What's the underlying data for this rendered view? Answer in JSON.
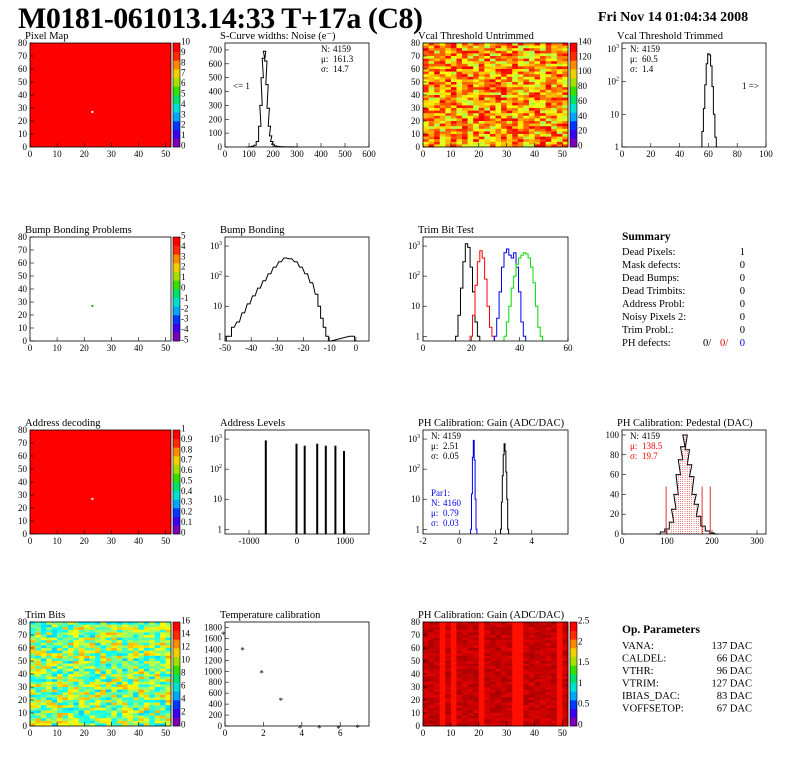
{
  "header": {
    "title": "M0181-061013.14:33 T+17a (C8)",
    "date": "Fri Nov 14 01:04:34 2008"
  },
  "colors": {
    "red": "#ff0000",
    "green": "#00dd00",
    "blue": "#0000ee",
    "black": "#000000",
    "frame": "#000000"
  },
  "chart_data": [
    {
      "id": "pixel-map",
      "type": "heatmap",
      "title": "Pixel Map",
      "xlim": [
        0,
        52
      ],
      "ylim": [
        0,
        80
      ],
      "xticks": [
        0,
        10,
        20,
        30,
        40,
        50
      ],
      "yticks": [
        0,
        10,
        20,
        30,
        40,
        50,
        60,
        70,
        80
      ],
      "fill": "uniform-red",
      "special_points": [
        {
          "x": 23,
          "y": 27,
          "color": "white"
        }
      ],
      "colorbar": {
        "min": 0,
        "max": 10,
        "ticks": [
          0,
          1,
          2,
          3,
          4,
          5,
          6,
          7,
          8,
          9,
          10
        ]
      }
    },
    {
      "id": "noise",
      "type": "line",
      "title": "S-Curve widths: Noise (e⁻)",
      "xlim": [
        0,
        600
      ],
      "ylim": [
        0,
        750
      ],
      "xticks": [
        0,
        100,
        200,
        300,
        400,
        500,
        600
      ],
      "yticks": [
        0,
        100,
        200,
        300,
        400,
        500,
        600,
        700
      ],
      "stats": [
        {
          "label": "N:",
          "value": "4159"
        },
        {
          "label": "μ:",
          "value": "161.3"
        },
        {
          "label": "σ:",
          "value": "14.7"
        }
      ],
      "annotation": "<= 1",
      "series": [
        {
          "x": [
            95,
            105,
            115,
            125,
            135,
            145,
            150,
            155,
            160,
            165,
            170,
            175,
            180,
            185,
            190,
            195,
            200,
            210,
            220,
            240,
            260,
            280,
            300
          ],
          "y": [
            0,
            2,
            5,
            12,
            40,
            150,
            300,
            500,
            640,
            690,
            620,
            450,
            280,
            150,
            80,
            40,
            20,
            8,
            4,
            2,
            1,
            1,
            0
          ]
        }
      ]
    },
    {
      "id": "vcal-untrimmed",
      "type": "heatmap",
      "title": "Vcal Threshold Untrimmed",
      "xlim": [
        0,
        52
      ],
      "ylim": [
        0,
        80
      ],
      "xticks": [
        0,
        10,
        20,
        30,
        40,
        50
      ],
      "yticks": [
        0,
        10,
        20,
        30,
        40,
        50,
        60,
        70,
        80
      ],
      "fill": "noisy-orange",
      "colorbar": {
        "min": 0,
        "max": 140,
        "ticks": [
          0,
          20,
          40,
          60,
          80,
          100,
          120,
          140
        ]
      }
    },
    {
      "id": "vcal-trimmed",
      "type": "line",
      "title": "Vcal Threshold Trimmed",
      "xlim": [
        0,
        100
      ],
      "ylim": [
        1,
        1500
      ],
      "log_y": true,
      "xticks": [
        0,
        20,
        40,
        60,
        80,
        100
      ],
      "yticks": [
        1,
        10,
        100,
        1000
      ],
      "stats": [
        {
          "label": "N:",
          "value": "4159"
        },
        {
          "label": "μ:",
          "value": "60.5"
        },
        {
          "label": "σ:",
          "value": "1.4"
        }
      ],
      "annotation": "1 =>",
      "series": [
        {
          "x": [
            55,
            56,
            57,
            58,
            59,
            60,
            61,
            62,
            63,
            64,
            65,
            66
          ],
          "y": [
            1,
            3,
            15,
            80,
            350,
            700,
            650,
            300,
            70,
            10,
            2,
            1
          ]
        }
      ]
    },
    {
      "id": "bump-problems",
      "type": "heatmap",
      "title": "Bump Bonding Problems",
      "xlim": [
        0,
        52
      ],
      "ylim": [
        0,
        80
      ],
      "xticks": [
        0,
        10,
        20,
        30,
        40,
        50
      ],
      "yticks": [
        0,
        10,
        20,
        30,
        40,
        50,
        60,
        70,
        80
      ],
      "fill": "white",
      "special_points": [
        {
          "x": 23,
          "y": 27,
          "color": "green"
        }
      ],
      "colorbar": {
        "min": -5,
        "max": 5,
        "ticks": [
          -5,
          -4,
          -3,
          -2,
          -1,
          0,
          1,
          2,
          3,
          4,
          5
        ]
      }
    },
    {
      "id": "bump-bonding",
      "type": "line",
      "title": "Bump Bonding",
      "xlim": [
        -50,
        5
      ],
      "ylim": [
        0.7,
        2000
      ],
      "log_y": true,
      "xticks": [
        -50,
        -40,
        -30,
        -20,
        -10,
        0
      ],
      "yticks": [
        1,
        10,
        100,
        1000
      ],
      "series": [
        {
          "x": [
            -49,
            -48,
            -47,
            -45,
            -43,
            -41,
            -39,
            -37,
            -35,
            -33,
            -31,
            -29,
            -27,
            -25,
            -23,
            -21,
            -19,
            -17,
            -15,
            -14,
            -13,
            -12,
            -11,
            -10,
            -2,
            -1,
            0
          ],
          "y": [
            1,
            1,
            2,
            3,
            6,
            12,
            22,
            40,
            70,
            120,
            200,
            300,
            400,
            380,
            300,
            200,
            120,
            60,
            25,
            10,
            4,
            2,
            1,
            0,
            1,
            1,
            0
          ]
        }
      ]
    },
    {
      "id": "trim-bit",
      "type": "line",
      "title": "Trim Bit Test",
      "xlim": [
        0,
        60
      ],
      "ylim": [
        0.7,
        2000
      ],
      "log_y": true,
      "xticks": [
        0,
        20,
        40,
        60
      ],
      "yticks": [
        1,
        10,
        100,
        1000
      ],
      "series": [
        {
          "name": "",
          "color": "#000000",
          "x": [
            14,
            15,
            16,
            17,
            18,
            19,
            20,
            21,
            22,
            23
          ],
          "y": [
            1,
            5,
            40,
            300,
            1200,
            900,
            200,
            30,
            3,
            1
          ]
        },
        {
          "name": "",
          "color": "#ff0000",
          "x": [
            20,
            21,
            22,
            23,
            24,
            25,
            26,
            27,
            28,
            29
          ],
          "y": [
            1,
            5,
            50,
            300,
            700,
            400,
            80,
            10,
            2,
            1
          ]
        },
        {
          "name": "",
          "color": "#0000ee",
          "x": [
            30,
            31,
            32,
            33,
            34,
            35,
            36,
            37,
            38,
            39,
            40,
            41,
            42
          ],
          "y": [
            1,
            4,
            30,
            200,
            600,
            800,
            500,
            400,
            600,
            200,
            30,
            3,
            1
          ]
        },
        {
          "name": "",
          "color": "#00dd00",
          "x": [
            34,
            35,
            36,
            37,
            38,
            39,
            40,
            41,
            42,
            43,
            44,
            45,
            46,
            47,
            48,
            49
          ],
          "y": [
            1,
            3,
            10,
            40,
            100,
            250,
            400,
            500,
            600,
            550,
            400,
            200,
            60,
            10,
            2,
            1
          ]
        }
      ]
    },
    {
      "id": "address-decoding",
      "type": "heatmap",
      "title": "Address decoding",
      "xlim": [
        0,
        52
      ],
      "ylim": [
        0,
        80
      ],
      "xticks": [
        0,
        10,
        20,
        30,
        40,
        50
      ],
      "yticks": [
        0,
        10,
        20,
        30,
        40,
        50,
        60,
        70,
        80
      ],
      "fill": "uniform-red",
      "special_points": [
        {
          "x": 23,
          "y": 27,
          "color": "white"
        }
      ],
      "colorbar": {
        "min": 0,
        "max": 1,
        "ticks": [
          0,
          0.1,
          0.2,
          0.3,
          0.4,
          0.5,
          0.6,
          0.7,
          0.8,
          0.9,
          1
        ]
      }
    },
    {
      "id": "address-levels",
      "type": "bar",
      "title": "Address Levels",
      "xlim": [
        -1500,
        1500
      ],
      "ylim": [
        0.7,
        2000
      ],
      "log_y": true,
      "xticks": [
        -1000,
        0,
        1000
      ],
      "yticks": [
        1,
        10,
        100,
        1000
      ],
      "x": [
        -650,
        -10,
        160,
        420,
        600,
        800,
        980
      ],
      "values": [
        900,
        700,
        600,
        700,
        600,
        600,
        400
      ]
    },
    {
      "id": "ph-gain",
      "type": "line",
      "title": "PH Calibration: Gain (ADC/DAC)",
      "xlim": [
        -2,
        6
      ],
      "ylim": [
        0.7,
        2000
      ],
      "log_y": true,
      "xticks": [
        -2,
        0,
        2,
        4
      ],
      "yticks": [
        1,
        10,
        100,
        1000
      ],
      "stats": [
        {
          "label": "N:",
          "value": "4159"
        },
        {
          "label": "μ:",
          "value": "2.51"
        },
        {
          "label": "σ:",
          "value": "0.05"
        }
      ],
      "stats2_title": "Par1:",
      "stats2": [
        {
          "label": "N:",
          "value": "4160"
        },
        {
          "label": "μ:",
          "value": "0.79"
        },
        {
          "label": "σ:",
          "value": "0.03"
        }
      ],
      "series": [
        {
          "name": "",
          "color": "#000000",
          "x": [
            2.3,
            2.35,
            2.4,
            2.45,
            2.5,
            2.55,
            2.6,
            2.65,
            2.7
          ],
          "y": [
            1,
            8,
            60,
            300,
            700,
            400,
            80,
            10,
            1
          ]
        },
        {
          "name": "",
          "color": "#0000ee",
          "x": [
            0.65,
            0.7,
            0.75,
            0.8,
            0.85,
            0.9,
            0.95
          ],
          "y": [
            1,
            15,
            250,
            900,
            200,
            10,
            1
          ]
        }
      ]
    },
    {
      "id": "ph-pedestal",
      "type": "line",
      "title": "PH Calibration: Pedestal (DAC)",
      "xlim": [
        0,
        320
      ],
      "ylim": [
        0,
        105
      ],
      "xticks": [
        0,
        100,
        200,
        300
      ],
      "yticks": [
        0,
        20,
        40,
        60,
        80,
        100
      ],
      "stats": [
        {
          "label": "N:",
          "value": "4159"
        },
        {
          "label": "μ:",
          "value": "138.5",
          "color": "#ff0000"
        },
        {
          "label": "σ:",
          "value": "19.7",
          "color": "#ff0000"
        }
      ],
      "markers": [
        98,
        178,
        196
      ],
      "series": [
        {
          "x": [
            80,
            90,
            100,
            110,
            115,
            120,
            125,
            130,
            135,
            140,
            145,
            150,
            155,
            160,
            165,
            170,
            180,
            190,
            200,
            210
          ],
          "y": [
            0,
            2,
            5,
            12,
            25,
            40,
            60,
            75,
            88,
            100,
            85,
            70,
            58,
            40,
            30,
            18,
            8,
            3,
            1,
            0
          ]
        }
      ]
    },
    {
      "id": "trim-bits",
      "type": "heatmap",
      "title": "Trim Bits",
      "xlim": [
        0,
        52
      ],
      "ylim": [
        0,
        80
      ],
      "xticks": [
        0,
        10,
        20,
        30,
        40,
        50
      ],
      "yticks": [
        0,
        10,
        20,
        30,
        40,
        50,
        60,
        70,
        80
      ],
      "fill": "noisy-green",
      "colorbar": {
        "min": 0,
        "max": 16,
        "ticks": [
          0,
          2,
          4,
          6,
          8,
          10,
          12,
          14,
          16
        ]
      }
    },
    {
      "id": "temperature",
      "type": "scatter",
      "title": "Temperature calibration",
      "xlim": [
        0,
        7.5
      ],
      "ylim": [
        0,
        1900
      ],
      "xticks": [
        0,
        2,
        4,
        6
      ],
      "yticks": [
        0,
        200,
        400,
        600,
        800,
        1000,
        1200,
        1400,
        1600,
        1800
      ],
      "x": [
        0,
        1,
        2,
        3,
        4,
        5,
        6,
        7
      ],
      "values": [
        1750,
        1470,
        1050,
        550,
        50,
        50,
        35,
        55
      ]
    },
    {
      "id": "ph-gain-map",
      "type": "heatmap",
      "title": "PH Calibration: Gain (ADC/DAC)",
      "xlim": [
        0,
        52
      ],
      "ylim": [
        0,
        80
      ],
      "xticks": [
        0,
        10,
        20,
        30,
        40,
        50
      ],
      "yticks": [
        0,
        10,
        20,
        30,
        40,
        50,
        60,
        70,
        80
      ],
      "fill": "red-columns",
      "colorbar": {
        "min": 0,
        "max": 2.5,
        "ticks": [
          0,
          0.5,
          1,
          1.5,
          2,
          2.5
        ]
      }
    }
  ],
  "summary": {
    "title": "Summary",
    "rows": [
      {
        "label": "Dead Pixels:",
        "value": "1"
      },
      {
        "label": "Mask defects:",
        "value": "0"
      },
      {
        "label": "Dead Bumps:",
        "value": "0"
      },
      {
        "label": "Dead Trimbits:",
        "value": "0"
      },
      {
        "label": "Address Probl:",
        "value": "0"
      },
      {
        "label": "Noisy Pixels 2:",
        "value": "0"
      },
      {
        "label": "Trim Probl.:",
        "value": "0"
      }
    ],
    "ph_defects": {
      "label": "PH defects:",
      "v1": "0/",
      "v2": "0/",
      "v3": "0"
    }
  },
  "op_parameters": {
    "title": "Op. Parameters",
    "rows": [
      {
        "label": "VANA:",
        "value": "137 DAC"
      },
      {
        "label": "CALDEL:",
        "value": "66 DAC"
      },
      {
        "label": "VTHR:",
        "value": "96 DAC"
      },
      {
        "label": "VTRIM:",
        "value": "127 DAC"
      },
      {
        "label": "IBIAS_DAC:",
        "value": "83 DAC"
      },
      {
        "label": "VOFFSETOP:",
        "value": "67 DAC"
      }
    ]
  }
}
